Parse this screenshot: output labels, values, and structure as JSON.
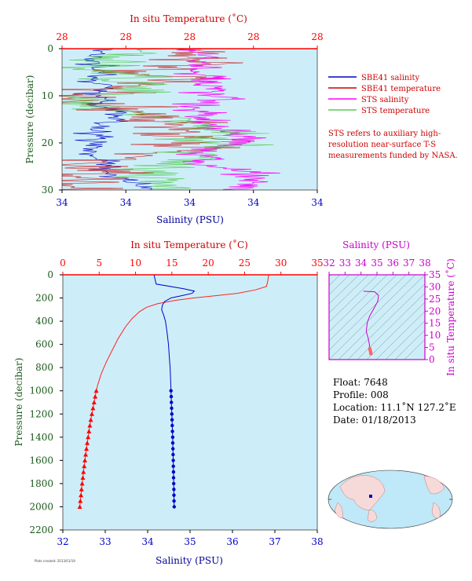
{
  "chart_data": [
    {
      "type": "line",
      "panel": "top-profile",
      "top_axis_title": "In situ Temperature (˚C)",
      "top_ticks": [
        "28",
        "28",
        "28",
        "28",
        "28"
      ],
      "xlabel": "Salinity (PSU)",
      "x_ticks": [
        "34",
        "34",
        "34",
        "34",
        "34"
      ],
      "ylabel": "Pressure (decibar)",
      "y_ticks": [
        "0",
        "10",
        "20",
        "30"
      ],
      "ylim": [
        0,
        30
      ],
      "series": [
        {
          "name": "SBE41 salinity",
          "color": "#0000cc"
        },
        {
          "name": "SBE41 temperature",
          "color": "#cc0000"
        },
        {
          "name": "STS salinity",
          "color": "#ff00ff"
        },
        {
          "name": "STS temperature",
          "color": "#55cc55"
        }
      ],
      "note": "STS refers to auxiliary high-resolution near-surface T-S measurements funded by NASA."
    },
    {
      "type": "line",
      "panel": "main-profile",
      "top_axis_title": "In situ Temperature (˚C)",
      "top_ticks": [
        "0",
        "5",
        "10",
        "15",
        "20",
        "25",
        "30",
        "35"
      ],
      "xlabel": "Salinity (PSU)",
      "x_ticks": [
        "32",
        "33",
        "34",
        "35",
        "36",
        "37",
        "38"
      ],
      "ylabel": "Pressure (decibar)",
      "y_ticks": [
        "0",
        "200",
        "400",
        "600",
        "800",
        "1000",
        "1200",
        "1400",
        "1600",
        "1800",
        "2000",
        "2200"
      ],
      "xlim": [
        32,
        38
      ],
      "temp_lim": [
        0,
        35
      ],
      "ylim": [
        0,
        2200
      ],
      "temperature_profile": {
        "color": "#ff2222",
        "pressure": [
          0,
          50,
          100,
          130,
          160,
          180,
          200,
          220,
          250,
          280,
          320,
          380,
          450,
          550,
          650,
          750,
          850,
          950,
          1000
        ],
        "temperature": [
          28.3,
          28.2,
          28.0,
          26.5,
          24.0,
          21.0,
          18.0,
          15.5,
          13.0,
          11.5,
          10.5,
          9.5,
          8.6,
          7.6,
          6.8,
          6.0,
          5.3,
          4.8,
          4.6
        ]
      },
      "temperature_points": {
        "pressure": [
          1000,
          1050,
          1100,
          1150,
          1200,
          1250,
          1300,
          1350,
          1400,
          1450,
          1500,
          1550,
          1600,
          1650,
          1700,
          1750,
          1800,
          1850,
          1900,
          1950,
          2000
        ],
        "temperature": [
          4.6,
          4.45,
          4.3,
          4.15,
          4.0,
          3.85,
          3.72,
          3.6,
          3.48,
          3.36,
          3.25,
          3.14,
          3.04,
          2.94,
          2.84,
          2.75,
          2.66,
          2.57,
          2.49,
          2.41,
          2.33
        ]
      },
      "salinity_profile": {
        "color": "#0000cc",
        "pressure": [
          0,
          80,
          120,
          140,
          160,
          180,
          200,
          230,
          260,
          300,
          350,
          400,
          500,
          600,
          700,
          800,
          900,
          1000
        ],
        "salinity": [
          34.15,
          34.2,
          34.85,
          35.1,
          35.05,
          34.8,
          34.55,
          34.4,
          34.35,
          34.33,
          34.38,
          34.42,
          34.46,
          34.49,
          34.51,
          34.53,
          34.54,
          34.55
        ]
      },
      "salinity_points": {
        "pressure": [
          1000,
          1050,
          1100,
          1150,
          1200,
          1250,
          1300,
          1350,
          1400,
          1450,
          1500,
          1550,
          1600,
          1650,
          1700,
          1750,
          1800,
          1850,
          1900,
          1950,
          2000
        ],
        "salinity": [
          34.55,
          34.555,
          34.56,
          34.565,
          34.57,
          34.575,
          34.58,
          34.585,
          34.59,
          34.593,
          34.596,
          34.6,
          34.603,
          34.606,
          34.609,
          34.612,
          34.615,
          34.618,
          34.62,
          34.622,
          34.625
        ]
      }
    },
    {
      "type": "scatter",
      "panel": "t-s-diagram",
      "top_axis_title": "Salinity (PSU)",
      "x_ticks": [
        "32",
        "33",
        "34",
        "35",
        "36",
        "37",
        "38"
      ],
      "ylabel": "In situ Temperature (˚C)",
      "y_ticks": [
        "0",
        "5",
        "10",
        "15",
        "20",
        "25",
        "30",
        "35"
      ],
      "xlim": [
        32,
        38
      ],
      "ylim": [
        0,
        35
      ]
    }
  ],
  "float_info": {
    "float_line": "Float:  7648",
    "profile_line": "Profile:  008",
    "location_line": "Location:  11.1˚N  127.2˚E",
    "date_line": "Date:  01/18/2013"
  },
  "colors": {
    "plot_bg": "#cdeef8",
    "axis_red": "#ff0000",
    "axis_magenta": "#cc00cc",
    "axis_green": "#1a5a1a",
    "title_red": "#cc0000",
    "title_blue": "#000099"
  },
  "credit_text": "Plots created: 2013/01/19"
}
